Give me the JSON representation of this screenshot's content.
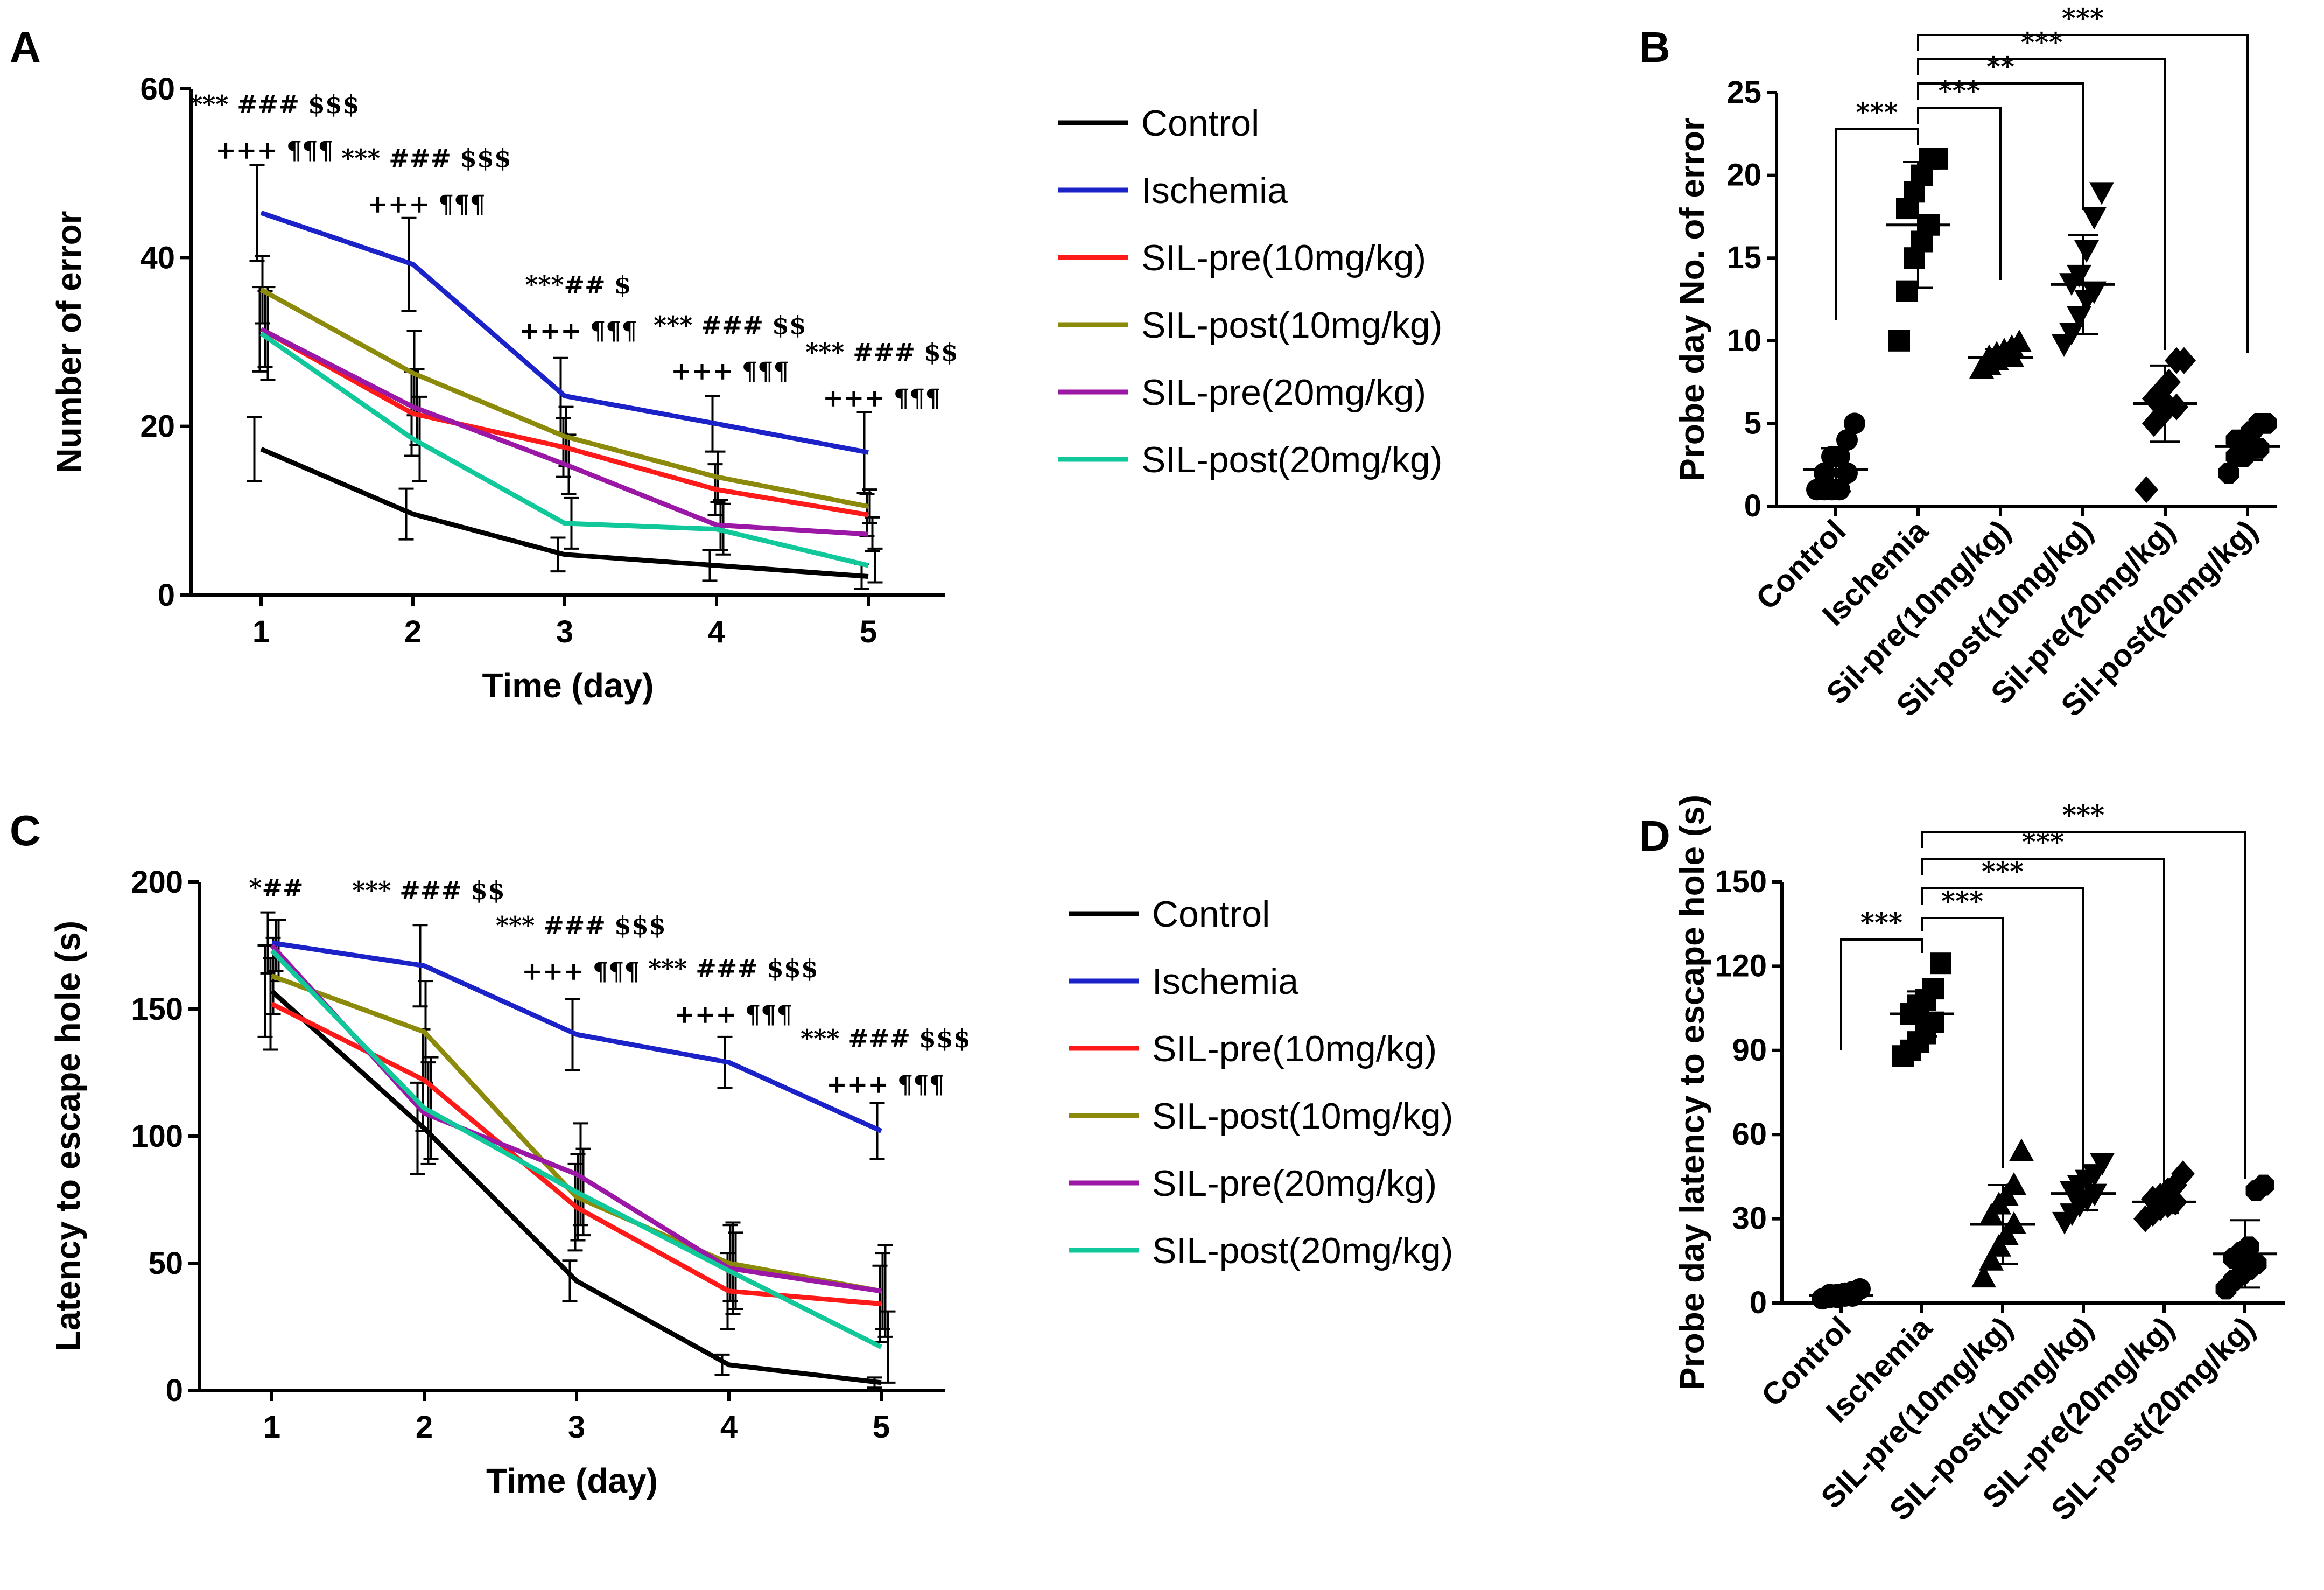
{
  "colors": {
    "control": "#000000",
    "ischemia": "#1b22c8",
    "sil_pre_10": "#ff1a1a",
    "sil_post_10": "#8c8a0a",
    "sil_pre_20": "#9b17a6",
    "sil_post_20": "#10c89a"
  },
  "chart_data": [
    {
      "panel": "A",
      "type": "line",
      "ylabel": "Number of error",
      "xlabel": "Time (day)",
      "x": [
        1,
        2,
        3,
        4,
        5
      ],
      "xtick_labels": [
        "1",
        "2",
        "3",
        "4",
        "5"
      ],
      "ylim": [
        0,
        60
      ],
      "yticks": [
        0,
        20,
        40,
        60
      ],
      "ytick_labels": [
        "0",
        "20",
        "40",
        "60"
      ],
      "legend": [
        "Control",
        "Ischemia",
        "SIL-pre(10mg/kg)",
        "SIL-post(10mg/kg)",
        "SIL-pre(20mg/kg)",
        "SIL-post(20mg/kg)"
      ],
      "series": [
        {
          "name": "Control",
          "key": "control",
          "values": [
            17.3,
            9.6,
            4.8,
            3.5,
            2.2
          ],
          "err": [
            3.8,
            3.0,
            2.0,
            1.8,
            1.5
          ]
        },
        {
          "name": "Ischemia",
          "key": "ischemia",
          "values": [
            45.3,
            39.2,
            23.6,
            20.3,
            16.9
          ],
          "err": [
            5.7,
            5.5,
            4.5,
            3.3,
            4.8
          ]
        },
        {
          "name": "SIL-pre(10mg/kg)",
          "key": "sil_pre_10",
          "values": [
            31.5,
            21.5,
            17.5,
            12.5,
            9.5
          ],
          "err": [
            5.0,
            5.0,
            3.5,
            3.0,
            2.5
          ]
        },
        {
          "name": "SIL-post(10mg/kg)",
          "key": "sil_post_10",
          "values": [
            36.2,
            26.3,
            18.8,
            14.0,
            10.5
          ],
          "err": [
            4.0,
            5.0,
            3.5,
            3.0,
            2.0
          ]
        },
        {
          "name": "SIL-pre(20mg/kg)",
          "key": "sil_pre_20",
          "values": [
            31.5,
            22.3,
            15.5,
            8.3,
            7.2
          ],
          "err": [
            4.5,
            4.5,
            3.5,
            3.0,
            2.0
          ]
        },
        {
          "name": "SIL-post(20mg/kg)",
          "key": "sil_post_20",
          "values": [
            31.0,
            18.5,
            8.5,
            7.8,
            3.5
          ],
          "err": [
            5.5,
            5.0,
            3.0,
            3.0,
            2.0
          ]
        }
      ],
      "annotations": [
        {
          "day": 1,
          "lines": [
            "*** ### $$$",
            "+++ ¶¶¶"
          ]
        },
        {
          "day": 2,
          "lines": [
            "*** ### $$$",
            "+++ ¶¶¶"
          ]
        },
        {
          "day": 3,
          "lines": [
            "***## $",
            "+++ ¶¶¶"
          ]
        },
        {
          "day": 4,
          "lines": [
            "*** ### $$",
            "+++ ¶¶¶"
          ]
        },
        {
          "day": 5,
          "lines": [
            "*** ### $$",
            "+++ ¶¶¶"
          ]
        }
      ]
    },
    {
      "panel": "B",
      "type": "scatter",
      "ylabel": "Probe day No. of error",
      "ylim": [
        0,
        25
      ],
      "yticks": [
        0,
        5,
        10,
        15,
        20,
        25
      ],
      "ytick_labels": [
        "0",
        "5",
        "10",
        "15",
        "20",
        "25"
      ],
      "categories": [
        "Control",
        "Ischemia",
        "Sil-pre(10mg/kg)",
        "Sil-post(10mg/kg)",
        "Sil-pre(20mg/kg)",
        "Sil-post(20mg/kg)"
      ],
      "markers": [
        "circle",
        "square",
        "triangle-up",
        "triangle-down",
        "diamond",
        "octagon"
      ],
      "groups": [
        {
          "mean": 2.2,
          "sd": 1.3,
          "points": [
            1,
            1,
            1,
            1,
            2,
            2,
            3,
            3,
            4,
            5
          ]
        },
        {
          "mean": 17.0,
          "sd": 3.8,
          "points": [
            10,
            13,
            15,
            16,
            17,
            18,
            19,
            20,
            21,
            21
          ]
        },
        {
          "mean": 9.0,
          "sd": 0.5,
          "points": [
            8.3,
            8.5,
            8.8,
            9,
            9,
            9,
            9.2,
            9.4,
            9.6,
            9.9
          ]
        },
        {
          "mean": 13.4,
          "sd": 3.0,
          "points": [
            9.8,
            10.5,
            11.5,
            12.5,
            13,
            13.5,
            14,
            15.5,
            17.5,
            19
          ]
        },
        {
          "mean": 6.2,
          "sd": 2.3,
          "points": [
            1,
            5,
            5.5,
            6,
            6,
            6.5,
            7,
            7.5,
            8.8,
            8.8
          ]
        },
        {
          "mean": 3.6,
          "sd": 0.8,
          "points": [
            2,
            3,
            3,
            3.5,
            3.5,
            4,
            4,
            4.5,
            5,
            5
          ]
        }
      ],
      "comparisons": [
        {
          "from": 1,
          "to": 0,
          "label": "***"
        },
        {
          "from": 1,
          "to": 2,
          "label": "***"
        },
        {
          "from": 1,
          "to": 3,
          "label": "**"
        },
        {
          "from": 1,
          "to": 4,
          "label": "***"
        },
        {
          "from": 1,
          "to": 5,
          "label": "***"
        }
      ]
    },
    {
      "panel": "C",
      "type": "line",
      "ylabel": "Latency to escape hole (s)",
      "xlabel": "Time (day)",
      "x": [
        1,
        2,
        3,
        4,
        5
      ],
      "xtick_labels": [
        "1",
        "2",
        "3",
        "4",
        "5"
      ],
      "ylim": [
        0,
        200
      ],
      "yticks": [
        0,
        50,
        100,
        150,
        200
      ],
      "ytick_labels": [
        "0",
        "50",
        "100",
        "150",
        "200"
      ],
      "legend": [
        "Control",
        "Ischemia",
        "SIL-pre(10mg/kg)",
        "SIL-post(10mg/kg)",
        "SIL-pre(20mg/kg)",
        "SIL-post(20mg/kg)"
      ],
      "series": [
        {
          "name": "Control",
          "key": "control",
          "values": [
            157,
            103,
            43,
            10,
            3
          ],
          "err": [
            18,
            18,
            8,
            4,
            2
          ]
        },
        {
          "name": "Ischemia",
          "key": "ischemia",
          "values": [
            176,
            167,
            140,
            129,
            102
          ],
          "err": [
            12,
            16,
            14,
            10,
            11
          ]
        },
        {
          "name": "SIL-pre(10mg/kg)",
          "key": "sil_pre_10",
          "values": [
            152,
            122,
            72,
            39,
            34
          ],
          "err": [
            18,
            20,
            17,
            15,
            15
          ]
        },
        {
          "name": "SIL-post(10mg/kg)",
          "key": "sil_post_10",
          "values": [
            163,
            141,
            76,
            50,
            39
          ],
          "err": [
            15,
            20,
            17,
            15,
            15
          ]
        },
        {
          "name": "SIL-pre(20mg/kg)",
          "key": "sil_pre_20",
          "values": [
            175,
            109,
            85,
            48,
            39
          ],
          "err": [
            10,
            20,
            20,
            18,
            18
          ]
        },
        {
          "name": "SIL-post(20mg/kg)",
          "key": "sil_post_20",
          "values": [
            173,
            111,
            78,
            47,
            17
          ],
          "err": [
            12,
            20,
            17,
            15,
            14
          ]
        }
      ],
      "annotations": [
        {
          "day": 1,
          "lines": [
            "*##"
          ]
        },
        {
          "day": 2,
          "lines": [
            "*** ### $$"
          ]
        },
        {
          "day": 3,
          "lines": [
            "*** ### $$$",
            "+++ ¶¶¶"
          ]
        },
        {
          "day": 4,
          "lines": [
            "*** ### $$$",
            "+++ ¶¶¶"
          ]
        },
        {
          "day": 5,
          "lines": [
            "*** ### $$$",
            "+++ ¶¶¶"
          ]
        }
      ]
    },
    {
      "panel": "D",
      "type": "scatter",
      "ylabel": "Probe day latency to escape hole (s)",
      "ylim": [
        0,
        150
      ],
      "yticks": [
        0,
        30,
        60,
        90,
        120,
        150
      ],
      "ytick_labels": [
        "0",
        "30",
        "60",
        "90",
        "120",
        "150"
      ],
      "categories": [
        "Control",
        "Ischemia",
        "SIL-pre(10mg/kg)",
        "SIL-post(10mg/kg)",
        "SIL-pre(20mg/kg)",
        "SIL-post(20mg/kg)"
      ],
      "markers": [
        "circle",
        "square",
        "triangle-up",
        "triangle-down",
        "diamond",
        "octagon"
      ],
      "groups": [
        {
          "mean": 2.7,
          "sd": 1.2,
          "points": [
            1.5,
            2,
            2,
            2.5,
            2.5,
            3,
            3,
            3.5,
            4,
            5
          ]
        },
        {
          "mean": 103,
          "sd": 8,
          "points": [
            88,
            90,
            93,
            96,
            100,
            103,
            106,
            108,
            112,
            121
          ]
        },
        {
          "mean": 28,
          "sd": 14,
          "points": [
            9,
            15,
            20,
            24,
            28,
            31,
            35,
            38,
            42,
            54
          ]
        },
        {
          "mean": 39,
          "sd": 6,
          "points": [
            29,
            32,
            35,
            37,
            39,
            40,
            42,
            44,
            46,
            50
          ]
        },
        {
          "mean": 36,
          "sd": 4,
          "points": [
            30,
            32,
            34,
            35,
            36,
            37,
            38,
            40,
            42,
            46
          ]
        },
        {
          "mean": 17.5,
          "sd": 12,
          "points": [
            5,
            8,
            10,
            12,
            14,
            16,
            18,
            20,
            40,
            42
          ]
        }
      ],
      "comparisons": [
        {
          "from": 1,
          "to": 0,
          "label": "***"
        },
        {
          "from": 1,
          "to": 2,
          "label": "***"
        },
        {
          "from": 1,
          "to": 3,
          "label": "***"
        },
        {
          "from": 1,
          "to": 4,
          "label": "***"
        },
        {
          "from": 1,
          "to": 5,
          "label": "***"
        }
      ]
    }
  ]
}
